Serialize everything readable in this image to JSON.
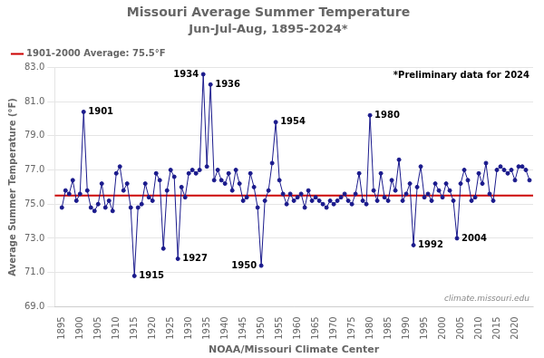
{
  "chart_data": {
    "type": "line",
    "title": "Missouri Average Summer Temperature",
    "subtitle": "Jun-Jul-Aug, 1895-2024*",
    "xlabel": "NOAA/Missouri Climate Center",
    "ylabel": "Average Summer Temperature (°F)",
    "x": [
      1895,
      1896,
      1897,
      1898,
      1899,
      1900,
      1901,
      1902,
      1903,
      1904,
      1905,
      1906,
      1907,
      1908,
      1909,
      1910,
      1911,
      1912,
      1913,
      1914,
      1915,
      1916,
      1917,
      1918,
      1919,
      1920,
      1921,
      1922,
      1923,
      1924,
      1925,
      1926,
      1927,
      1928,
      1929,
      1930,
      1931,
      1932,
      1933,
      1934,
      1935,
      1936,
      1937,
      1938,
      1939,
      1940,
      1941,
      1942,
      1943,
      1944,
      1945,
      1946,
      1947,
      1948,
      1949,
      1950,
      1951,
      1952,
      1953,
      1954,
      1955,
      1956,
      1957,
      1958,
      1959,
      1960,
      1961,
      1962,
      1963,
      1964,
      1965,
      1966,
      1967,
      1968,
      1969,
      1970,
      1971,
      1972,
      1973,
      1974,
      1975,
      1976,
      1977,
      1978,
      1979,
      1980,
      1981,
      1982,
      1983,
      1984,
      1985,
      1986,
      1987,
      1988,
      1989,
      1990,
      1991,
      1992,
      1993,
      1994,
      1995,
      1996,
      1997,
      1998,
      1999,
      2000,
      2001,
      2002,
      2003,
      2004,
      2005,
      2006,
      2007,
      2008,
      2009,
      2010,
      2011,
      2012,
      2013,
      2014,
      2015,
      2016,
      2017,
      2018,
      2019,
      2020,
      2021,
      2022,
      2023,
      2024
    ],
    "values": [
      74.8,
      75.8,
      75.6,
      76.4,
      75.2,
      75.6,
      80.4,
      75.8,
      74.8,
      74.6,
      75.0,
      76.2,
      74.8,
      75.2,
      74.6,
      76.8,
      77.2,
      75.8,
      76.2,
      74.8,
      70.8,
      74.8,
      75.0,
      76.2,
      75.4,
      75.2,
      76.8,
      76.4,
      72.4,
      75.8,
      77.0,
      76.6,
      71.8,
      76.0,
      75.4,
      76.8,
      77.0,
      76.8,
      77.0,
      82.6,
      77.2,
      82.0,
      76.4,
      77.0,
      76.4,
      76.2,
      76.8,
      75.8,
      77.0,
      76.2,
      75.2,
      75.4,
      76.8,
      76.0,
      74.8,
      71.4,
      75.2,
      75.8,
      77.4,
      79.8,
      76.4,
      75.6,
      75.0,
      75.6,
      75.2,
      75.4,
      75.6,
      74.8,
      75.8,
      75.2,
      75.4,
      75.2,
      75.0,
      74.8,
      75.2,
      75.0,
      75.2,
      75.4,
      75.6,
      75.2,
      75.0,
      75.6,
      76.8,
      75.2,
      75.0,
      80.2,
      75.8,
      75.2,
      76.8,
      75.4,
      75.2,
      76.4,
      75.8,
      77.6,
      75.2,
      75.6,
      76.2,
      72.6,
      76.0,
      77.2,
      75.4,
      75.6,
      75.2,
      76.2,
      75.8,
      75.4,
      76.2,
      75.8,
      75.2,
      73.0,
      76.2,
      77.0,
      76.4,
      75.2,
      75.4,
      76.8,
      76.2,
      77.4,
      75.6,
      75.2,
      77.0,
      77.2,
      77.0,
      76.8,
      77.0,
      76.4,
      77.2,
      77.2,
      77.0,
      76.4
    ],
    "color": "#1a1a8c",
    "marker": "circle",
    "hline": {
      "value": 75.5,
      "label": "1901-2000 Average: 75.5°F",
      "color": "#cc0000"
    },
    "legend": "top",
    "note": "*Preliminary data for 2024",
    "source": "climate.missouri.edu",
    "annotations": [
      {
        "x": 1901,
        "label": "1901"
      },
      {
        "x": 1915,
        "label": "1915"
      },
      {
        "x": 1927,
        "label": "1927"
      },
      {
        "x": 1934,
        "label": "1934"
      },
      {
        "x": 1936,
        "label": "1936"
      },
      {
        "x": 1950,
        "label": "1950"
      },
      {
        "x": 1954,
        "label": "1954"
      },
      {
        "x": 1980,
        "label": "1980"
      },
      {
        "x": 1992,
        "label": "1992"
      },
      {
        "x": 2004,
        "label": "2004"
      }
    ],
    "xlim": [
      1893,
      2025
    ],
    "xticks": [
      1895,
      1900,
      1905,
      1910,
      1915,
      1920,
      1925,
      1930,
      1935,
      1940,
      1945,
      1950,
      1955,
      1960,
      1965,
      1970,
      1975,
      1980,
      1985,
      1990,
      1995,
      2000,
      2005,
      2010,
      2015,
      2020
    ],
    "ylim": [
      69,
      83
    ],
    "yticks": [
      {
        "value": 69,
        "label": "69.0"
      },
      {
        "value": 71,
        "label": "71.0"
      },
      {
        "value": 73,
        "label": "73.0"
      },
      {
        "value": 75,
        "label": "75.0"
      },
      {
        "value": 77,
        "label": "77.0"
      },
      {
        "value": 79,
        "label": "79.0"
      },
      {
        "value": 81,
        "label": "81.0"
      },
      {
        "value": 83,
        "label": "83.0"
      }
    ],
    "grid": "y"
  }
}
